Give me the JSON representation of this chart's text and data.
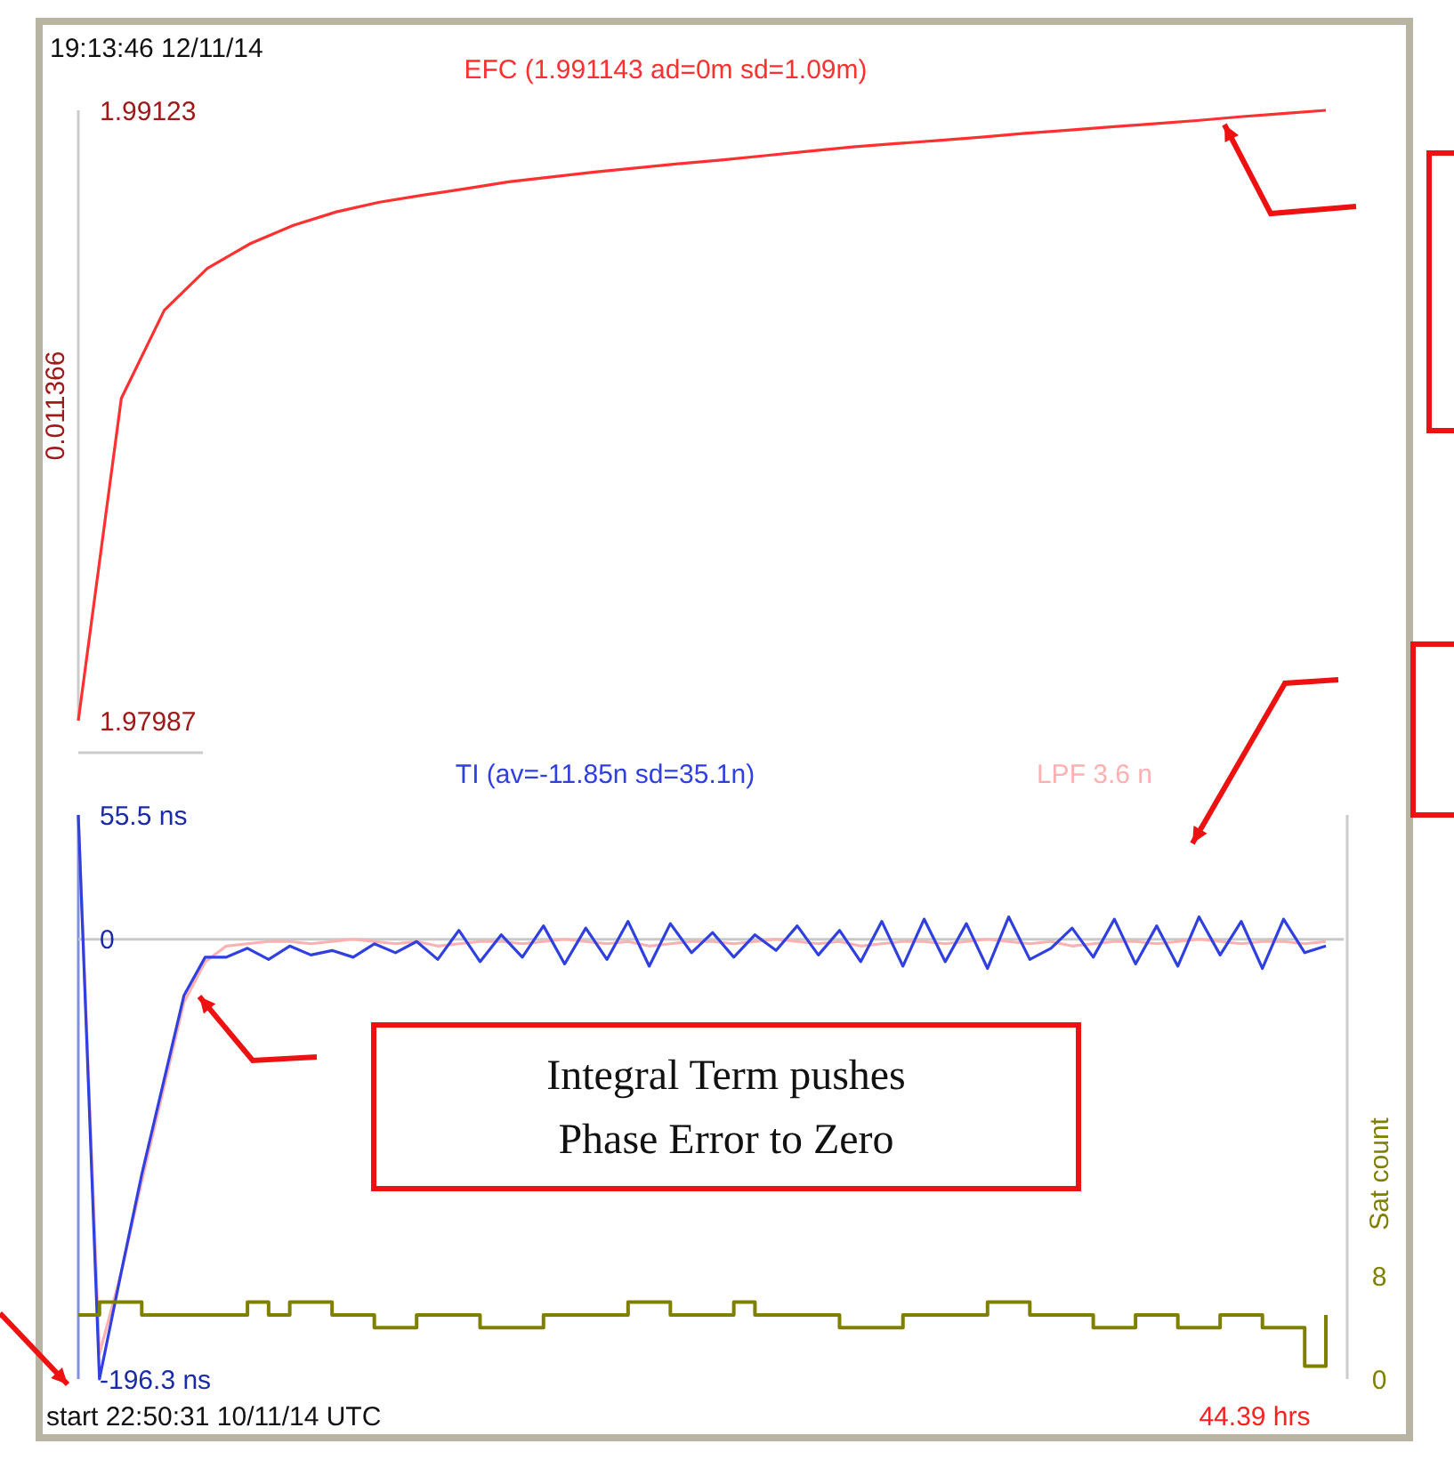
{
  "chart_data": [
    {
      "type": "line",
      "categories": [
        null,
        null,
        null,
        null,
        null,
        null,
        null,
        null,
        null,
        null,
        null,
        null,
        null,
        null,
        null,
        null,
        null,
        null,
        null,
        null,
        null,
        null,
        null,
        null,
        null,
        null,
        null,
        null,
        null,
        null
      ],
      "ylim": [
        1.97987,
        1.99123
      ],
      "yticks": [
        1.99123,
        1.97987
      ],
      "annotations": [
        "19:13:46 12/11/14",
        "0.011366"
      ],
      "series": [
        {
          "name": "EFC (1.991143 ad=0m sd=1.09m)",
          "color": "#ff3030",
          "values": [
            1.97987,
            1.98587,
            1.98751,
            1.98829,
            1.98875,
            1.98909,
            1.98934,
            1.98952,
            1.98965,
            1.98977,
            1.9899,
            1.98999,
            1.99008,
            1.99016,
            1.99024,
            1.99031,
            1.99039,
            1.99047,
            1.99055,
            1.99061,
            1.99067,
            1.99073,
            1.9908,
            1.99086,
            1.99092,
            1.99098,
            1.99104,
            1.99111,
            1.99117,
            1.99123
          ]
        }
      ]
    },
    {
      "type": "line",
      "categories": [
        null,
        null,
        null,
        null,
        null,
        null,
        null,
        null,
        null,
        null,
        null,
        null,
        null,
        null,
        null,
        null,
        null,
        null,
        null,
        null,
        null,
        null,
        null,
        null,
        null,
        null,
        null,
        null,
        null,
        null,
        null,
        null,
        null,
        null,
        null,
        null,
        null,
        null,
        null,
        null,
        null,
        null,
        null,
        null,
        null,
        null,
        null,
        null,
        null,
        null,
        null,
        null,
        null,
        null,
        null,
        null,
        null,
        null,
        null,
        null
      ],
      "ylim": [
        -196.3,
        55.5
      ],
      "yticks": [
        {
          "value": 55.5,
          "label": "55.5 ns"
        },
        0,
        {
          "value": -196.3,
          "label": "-196.3 ns"
        }
      ],
      "y2lim": [
        0,
        44
      ],
      "y2ticks": [
        0,
        8
      ],
      "y2label": "Sat count",
      "ref_lines": [
        {
          "axis": "y",
          "value": 0,
          "color": "#c8c8c8"
        }
      ],
      "annotations": [
        "start 22:50:31 10/11/14 UTC",
        "44.39 hrs",
        "Integral Term pushes Phase Error to Zero"
      ],
      "series": [
        {
          "name": "LPF 3.6 n",
          "color": "#ffb0b0",
          "values": [
            55.5,
            -185,
            -150,
            -108,
            -68,
            -28,
            -10,
            -3,
            -2,
            -1,
            -1,
            -2,
            -1,
            0,
            -1,
            -2,
            -1,
            -3,
            -2,
            -1,
            -1,
            -2,
            -1,
            0,
            -1,
            -2,
            -1,
            -3,
            -2,
            -1,
            -1,
            -2,
            -1,
            0,
            -1,
            -2,
            -1,
            -3,
            -2,
            -1,
            -1,
            -2,
            -1,
            0,
            -1,
            -2,
            -1,
            -3,
            -2,
            -1,
            -1,
            -2,
            -1,
            0,
            -1,
            -2,
            -1,
            -1,
            -2,
            -1
          ]
        },
        {
          "name": "TI (av=-11.85n sd=35.1n)",
          "color": "#3040e0",
          "values": [
            55.5,
            -196.3,
            -150,
            -105,
            -65,
            -25,
            -8,
            -8,
            -4,
            -9,
            -3,
            -7,
            -5,
            -8,
            -2,
            -6,
            -1,
            -9,
            4,
            -10,
            2,
            -8,
            6,
            -11,
            5,
            -9,
            8,
            -12,
            7,
            -6,
            3,
            -8,
            2,
            -5,
            6,
            -7,
            4,
            -10,
            8,
            -12,
            9,
            -10,
            7,
            -13,
            10,
            -9,
            -4,
            5,
            -8,
            9,
            -11,
            6,
            -12,
            10,
            -7,
            8,
            -13,
            9,
            -6,
            -3
          ]
        },
        {
          "type": "step",
          "axis": "y2",
          "color": "#808000",
          "values": [
            5,
            6,
            6,
            5,
            5,
            5,
            5,
            5,
            6,
            5,
            6,
            6,
            5,
            5,
            4,
            4,
            5,
            5,
            5,
            4,
            4,
            4,
            5,
            5,
            5,
            5,
            6,
            6,
            5,
            5,
            5,
            6,
            5,
            5,
            5,
            5,
            4,
            4,
            4,
            5,
            5,
            5,
            5,
            6,
            6,
            5,
            5,
            5,
            4,
            4,
            5,
            5,
            4,
            4,
            5,
            5,
            4,
            4,
            1,
            5
          ]
        }
      ]
    }
  ]
}
